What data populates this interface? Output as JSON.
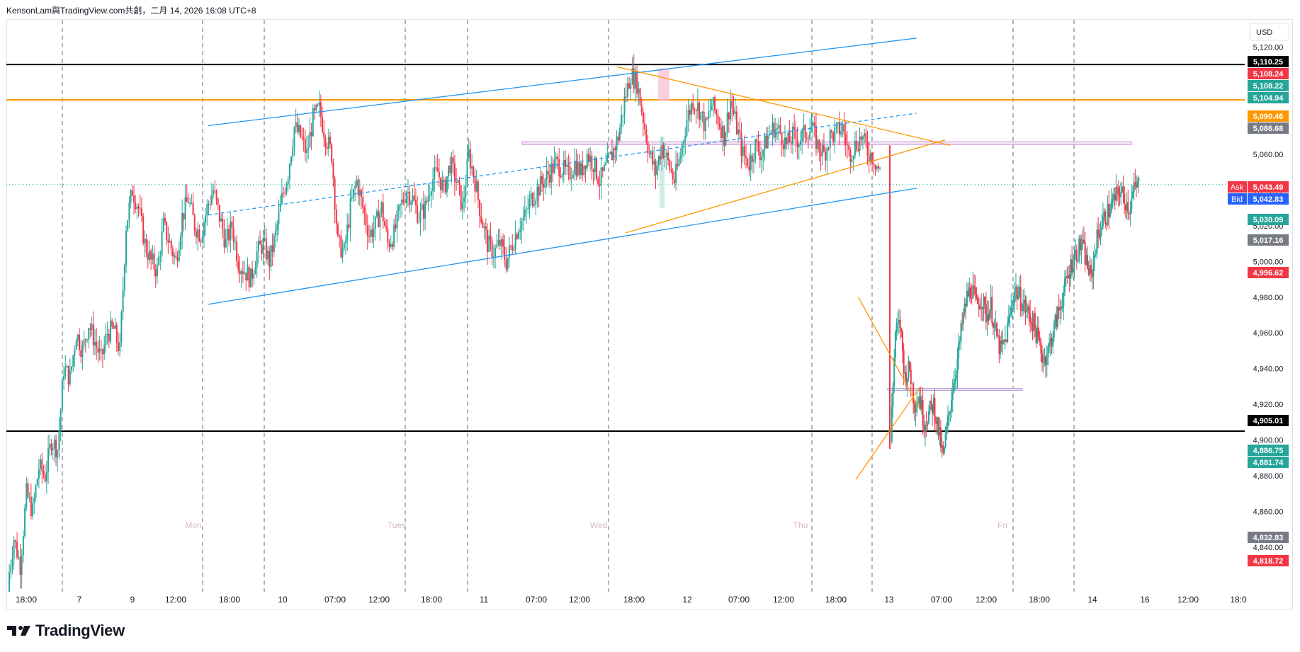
{
  "header": {
    "title": "KensonLam與TradingView.com共創，二月 14, 2026 16:08 UTC+8"
  },
  "currency": "USD",
  "footer": {
    "brand": "TradingView"
  },
  "colors": {
    "up": "#26a69a",
    "down": "#f23645",
    "orange": "#ff9800",
    "blue": "#2196f3",
    "black": "#000000"
  },
  "chart_data": {
    "type": "candlestick",
    "ylim": [
      4800,
      5140
    ],
    "y_ticks": [
      4840,
      4860,
      4880,
      4900,
      4920,
      4940,
      4960,
      4980,
      5000,
      5020,
      5040,
      5060,
      5080,
      5100,
      5120
    ],
    "y_tick_labels": [
      "4,840.00",
      "4,860.00",
      "4,880.00",
      "4,900.00",
      "4,920.00",
      "4,940.00",
      "4,960.00",
      "4,980.00",
      "5,000.00",
      "5,020.00",
      "5,040.00",
      "5,060.00",
      "5,080.00",
      "5,100.00",
      "5,120.00"
    ],
    "x_labels": [
      "18:00",
      "7",
      "9",
      "12:00",
      "18:00",
      "10",
      "07:00",
      "12:00",
      "18:00",
      "11",
      "07:00",
      "12:00",
      "18:00",
      "12",
      "07:00",
      "12:00",
      "18:00",
      "13",
      "07:00",
      "12:00",
      "18:00",
      "14",
      "16",
      "12:00",
      "18:0"
    ],
    "day_labels": [
      "Mon",
      "Tues",
      "Wed",
      "Thu",
      "Fri"
    ],
    "price_labels": [
      {
        "text": "5,110.25",
        "value": 5110.25,
        "color": "#000000"
      },
      {
        "text": "5,108.24",
        "value": 5108.24,
        "color": "#f23645"
      },
      {
        "text": "5,108.22",
        "value": 5108.22,
        "color": "#26a69a"
      },
      {
        "text": "5,104.94",
        "value": 5104.94,
        "color": "#26a69a"
      },
      {
        "text": "5,090.46",
        "value": 5090.46,
        "color": "#ff9800"
      },
      {
        "text": "5,086.68",
        "value": 5086.68,
        "color": "#787b86"
      },
      {
        "text": "5,043.49",
        "value": 5043.49,
        "color": "#f23645",
        "tag": "Ask"
      },
      {
        "text": "5,042.83",
        "value": 5042.83,
        "color": "#2962ff",
        "tag": "Bid"
      },
      {
        "text": "5,030.09",
        "value": 5030.09,
        "color": "#26a69a"
      },
      {
        "text": "5,017.16",
        "value": 5017.16,
        "color": "#787b86"
      },
      {
        "text": "4,996.62",
        "value": 4996.62,
        "color": "#f23645"
      },
      {
        "text": "4,905.01",
        "value": 4905.01,
        "color": "#000000"
      },
      {
        "text": "4,886.75",
        "value": 4886.75,
        "color": "#26a69a"
      },
      {
        "text": "4,881.74",
        "value": 4881.74,
        "color": "#26a69a"
      },
      {
        "text": "4,832.83",
        "value": 4832.83,
        "color": "#787b86"
      },
      {
        "text": "4,818.72",
        "value": 4818.72,
        "color": "#f23645"
      }
    ],
    "horizontal_levels": [
      {
        "value": 5110.25,
        "color": "#000000"
      },
      {
        "value": 5090.46,
        "color": "#ff9800"
      },
      {
        "value": 4905.01,
        "color": "#000000"
      }
    ],
    "close_segments": [
      [
        4820,
        4845,
        4830,
        4870,
        4860,
        4885,
        4880,
        4900,
        4895,
        4940,
        4935,
        4960,
        4950,
        4965,
        4955,
        4945,
        4960,
        4962,
        4950,
        5020,
        5040,
        5030,
        5010,
        5000,
        4995,
        5020,
        5010,
        5000,
        5025,
        5035,
        5020,
        5015,
        5030,
        5040,
        5025,
        5010,
        5020,
        5000,
        4995,
        4990,
        5005,
        5010,
        5000,
        5015,
        5035,
        5050,
        5075,
        5070,
        5060,
        5080,
        5085,
        5070,
        5060,
        5010,
        5005,
        5030,
        5045,
        5030,
        5015,
        5020,
        5030,
        5010,
        5015,
        5030,
        5040,
        5035,
        5025,
        5030,
        5045,
        5050,
        5040,
        5055,
        5045,
        5030,
        5060,
        5045,
        5025,
        5010,
        5005,
        5010,
        5000,
        5010,
        5020,
        5025,
        5035,
        5040,
        5045,
        5050,
        5055,
        5052,
        5048,
        5055,
        5050,
        5060,
        5055,
        5045,
        5052,
        5060,
        5070,
        5090,
        5105,
        5100,
        5080,
        5060,
        5050,
        5065,
        5055,
        5045,
        5060,
        5080,
        5090,
        5085,
        5075,
        5088,
        5080,
        5070,
        5090,
        5075,
        5060,
        5055,
        5065,
        5060,
        5070,
        5075,
        5072,
        5065,
        5070,
        5068,
        5072,
        5075,
        5065,
        5060,
        5070,
        5072,
        5075,
        5060,
        5065,
        5070,
        5062,
        5058,
        5050
      ],
      [
        4905,
        4960,
        4965,
        4935,
        4940,
        4920,
        4925,
        4910,
        4915,
        4920,
        4905,
        4890,
        4910,
        4930,
        4945,
        4965,
        4980,
        4985,
        4975,
        4980,
        4970,
        4975,
        4960,
        4950,
        4955,
        4970,
        4985,
        4980,
        4975,
        4970,
        4965,
        4955,
        4945,
        4950,
        4960,
        4970,
        4980,
        4990,
        5000,
        5005,
        5010,
        5000,
        4990,
        5010,
        5020,
        5025,
        5030,
        5035,
        5040,
        5035,
        5030,
        5040,
        5043
      ]
    ],
    "trend_lines": [
      {
        "name": "channel-upper",
        "color": "#2196f3",
        "points": [
          [
            0.163,
            5076
          ],
          [
            0.735,
            5125
          ]
        ]
      },
      {
        "name": "channel-lower",
        "color": "#2196f3",
        "points": [
          [
            0.163,
            4976
          ],
          [
            0.735,
            5041
          ]
        ]
      },
      {
        "name": "channel-mid",
        "color": "#2196f3",
        "dashed": true,
        "points": [
          [
            0.163,
            5026
          ],
          [
            0.735,
            5083
          ]
        ]
      },
      {
        "name": "triangle-upper",
        "color": "#ff9800",
        "points": [
          [
            0.493,
            5109
          ],
          [
            0.762,
            5065
          ]
        ]
      },
      {
        "name": "triangle-lower",
        "color": "#ff9800",
        "points": [
          [
            0.5,
            5016
          ],
          [
            0.758,
            5068
          ]
        ]
      },
      {
        "name": "wedge-upper",
        "color": "#ff9800",
        "points": [
          [
            0.688,
            4980
          ],
          [
            0.738,
            4917
          ]
        ]
      },
      {
        "name": "wedge-lower",
        "color": "#ff9800",
        "points": [
          [
            0.686,
            4878
          ],
          [
            0.738,
            4930
          ]
        ]
      }
    ]
  }
}
